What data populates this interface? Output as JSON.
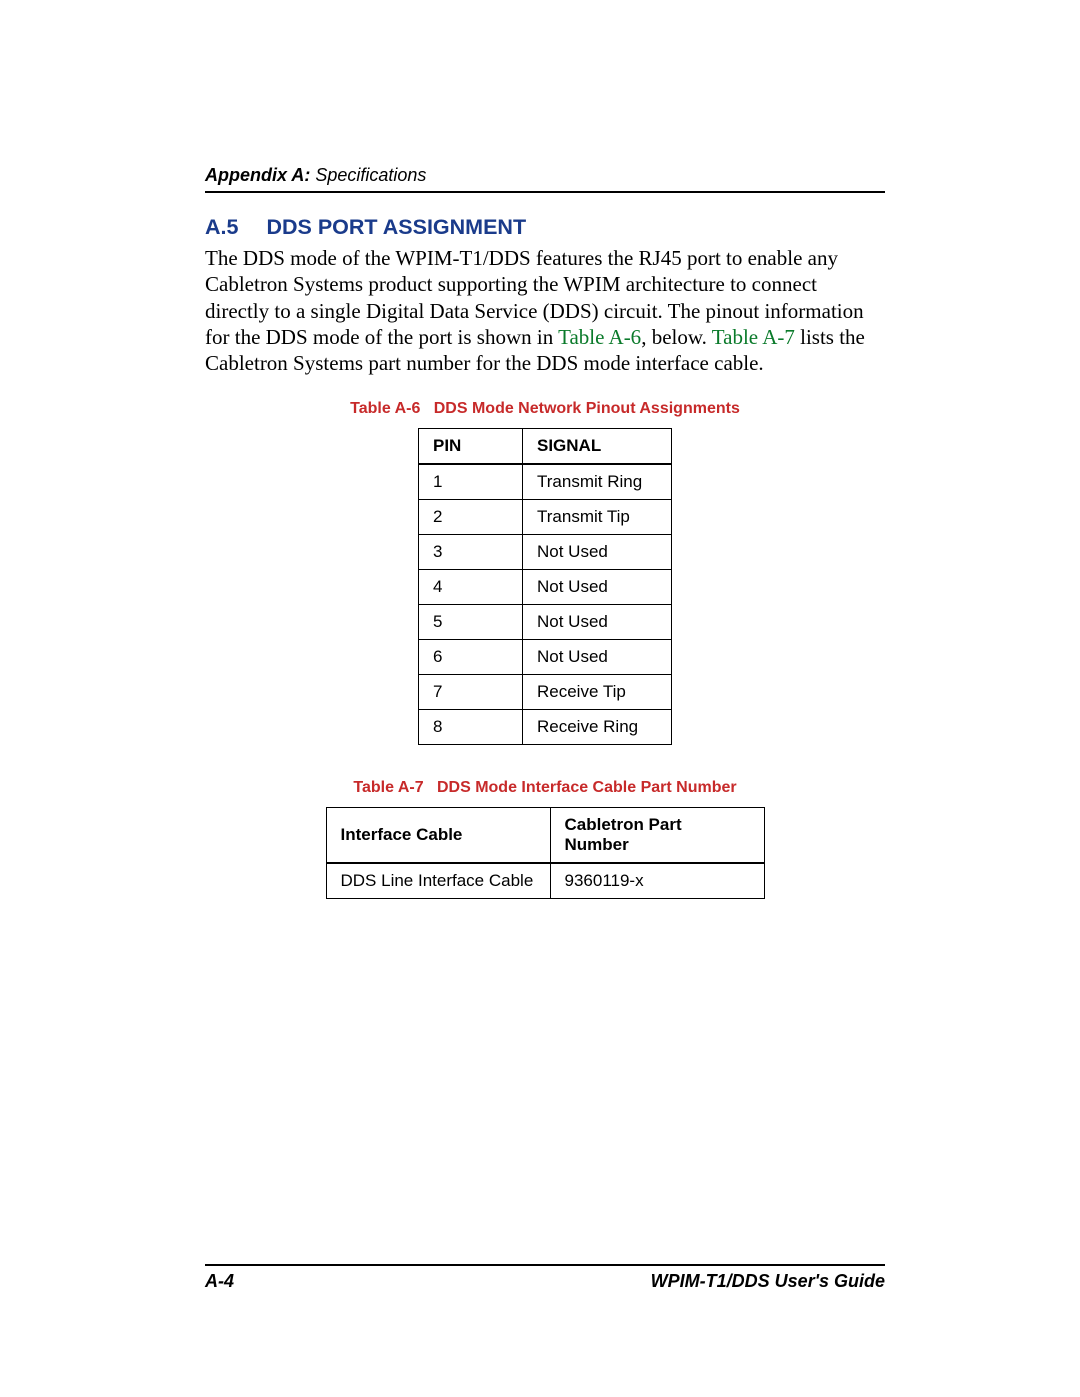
{
  "header": {
    "appendix": "Appendix A:",
    "title": "Specifications"
  },
  "section": {
    "number": "A.5",
    "title": "DDS PORT ASSIGNMENT"
  },
  "paragraph": {
    "part1": "The DDS mode of the WPIM-T1/DDS features the RJ45 port to enable any Cabletron Systems product supporting the WPIM architecture to connect directly to a single Digital Data Service (DDS) circuit. The pinout information for the DDS mode of the port is shown in ",
    "link1": "Table A-6",
    "part2": ", below. ",
    "link2": "Table A-7",
    "part3": " lists the Cabletron Systems part number for the DDS mode interface cable."
  },
  "table_a6": {
    "caption_prefix": "Table A-6",
    "caption_text": "DDS Mode Network Pinout Assignments",
    "columns": [
      "PIN",
      "SIGNAL"
    ],
    "rows": [
      [
        "1",
        "Transmit Ring"
      ],
      [
        "2",
        "Transmit Tip"
      ],
      [
        "3",
        "Not Used"
      ],
      [
        "4",
        "Not Used"
      ],
      [
        "5",
        "Not Used"
      ],
      [
        "6",
        "Not Used"
      ],
      [
        "7",
        "Receive Tip"
      ],
      [
        "8",
        "Receive Ring"
      ]
    ]
  },
  "table_a7": {
    "caption_prefix": "Table A-7",
    "caption_text": "DDS Mode Interface Cable Part Number",
    "columns": [
      "Interface Cable",
      "Cabletron Part Number"
    ],
    "rows": [
      [
        "DDS Line Interface Cable",
        "9360119-x"
      ]
    ]
  },
  "footer": {
    "page": "A-4",
    "doc": "WPIM-T1/DDS User's Guide"
  },
  "colors": {
    "heading": "#1a3b8b",
    "caption": "#c72a2a",
    "link": "#0a7a2a",
    "text": "#000000",
    "background": "#ffffff"
  }
}
